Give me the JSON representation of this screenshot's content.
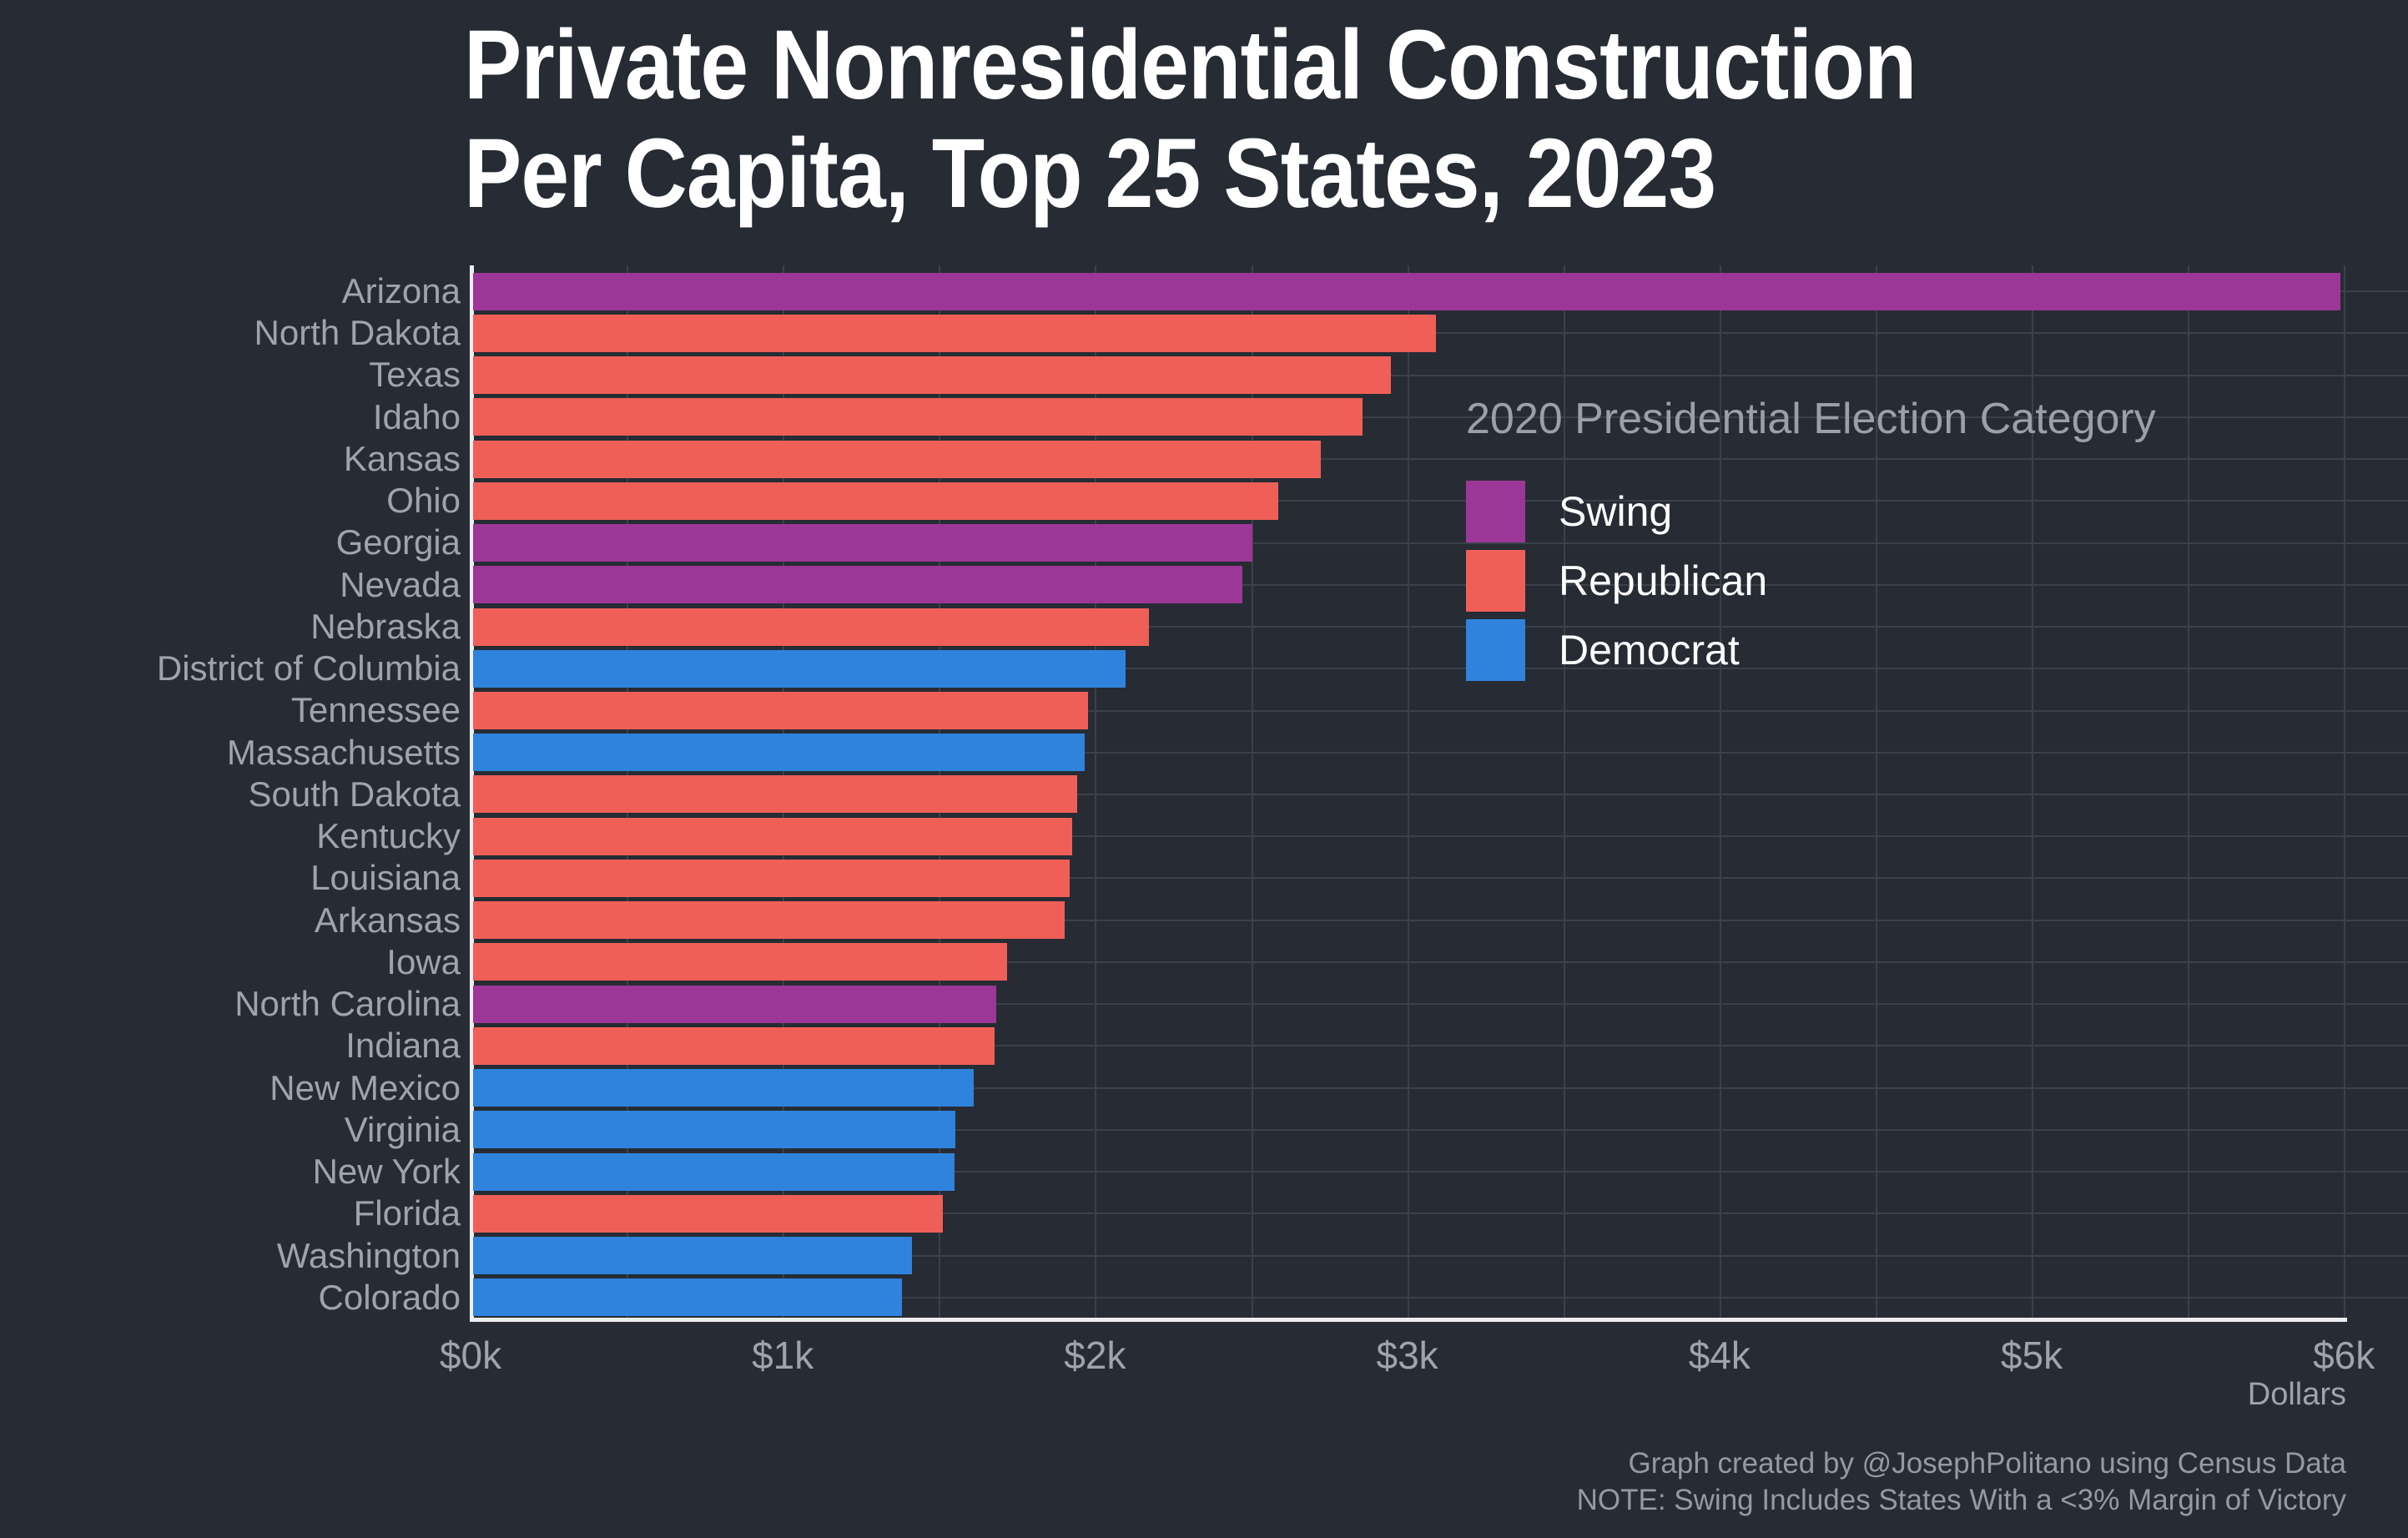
{
  "title": {
    "line1": "Private Nonresidential Construction",
    "line2": "Per Capita, Top 25 States, 2023"
  },
  "legend": {
    "title": "2020 Presidential Election Category",
    "items": [
      {
        "label": "Swing",
        "color": "#9C3797"
      },
      {
        "label": "Republican",
        "color": "#EF5F57"
      },
      {
        "label": "Democrat",
        "color": "#2F83DC"
      }
    ]
  },
  "axis": {
    "tick_labels": [
      "$0k",
      "$1k",
      "$2k",
      "$3k",
      "$4k",
      "$5k",
      "$6k"
    ],
    "tick_values": [
      0,
      1000,
      2000,
      3000,
      4000,
      5000,
      6000
    ],
    "xlabel": "Dollars"
  },
  "notes": [
    "Graph created by @JosephPolitano using Census Data",
    "NOTE: Swing Includes States With a <3% Margin of Victory"
  ],
  "chart_data": {
    "type": "bar",
    "orientation": "horizontal",
    "title": "Private Nonresidential Construction Per Capita, Top 25 States, 2023",
    "xlabel": "Dollars",
    "xlim": [
      0,
      6000
    ],
    "grid": "on",
    "legend_position": "upper-right-inside",
    "category_colors": {
      "Swing": "#9C3797",
      "Republican": "#EF5F57",
      "Democrat": "#2F83DC"
    },
    "states": [
      {
        "name": "Arizona",
        "value": 5985,
        "category": "Swing"
      },
      {
        "name": "North Dakota",
        "value": 3090,
        "category": "Republican"
      },
      {
        "name": "Texas",
        "value": 2945,
        "category": "Republican"
      },
      {
        "name": "Idaho",
        "value": 2855,
        "category": "Republican"
      },
      {
        "name": "Kansas",
        "value": 2720,
        "category": "Republican"
      },
      {
        "name": "Ohio",
        "value": 2585,
        "category": "Republican"
      },
      {
        "name": "Georgia",
        "value": 2500,
        "category": "Swing"
      },
      {
        "name": "Nevada",
        "value": 2470,
        "category": "Swing"
      },
      {
        "name": "Nebraska",
        "value": 2170,
        "category": "Republican"
      },
      {
        "name": "District of Columbia",
        "value": 2095,
        "category": "Democrat"
      },
      {
        "name": "Tennessee",
        "value": 1975,
        "category": "Republican"
      },
      {
        "name": "Massachusetts",
        "value": 1965,
        "category": "Democrat"
      },
      {
        "name": "South Dakota",
        "value": 1940,
        "category": "Republican"
      },
      {
        "name": "Kentucky",
        "value": 1925,
        "category": "Republican"
      },
      {
        "name": "Louisiana",
        "value": 1915,
        "category": "Republican"
      },
      {
        "name": "Arkansas",
        "value": 1900,
        "category": "Republican"
      },
      {
        "name": "Iowa",
        "value": 1715,
        "category": "Republican"
      },
      {
        "name": "North Carolina",
        "value": 1680,
        "category": "Swing"
      },
      {
        "name": "Indiana",
        "value": 1675,
        "category": "Republican"
      },
      {
        "name": "New Mexico",
        "value": 1610,
        "category": "Democrat"
      },
      {
        "name": "Virginia",
        "value": 1550,
        "category": "Democrat"
      },
      {
        "name": "New York",
        "value": 1548,
        "category": "Democrat"
      },
      {
        "name": "Florida",
        "value": 1510,
        "category": "Republican"
      },
      {
        "name": "Washington",
        "value": 1410,
        "category": "Democrat"
      },
      {
        "name": "Colorado",
        "value": 1380,
        "category": "Democrat"
      }
    ]
  }
}
